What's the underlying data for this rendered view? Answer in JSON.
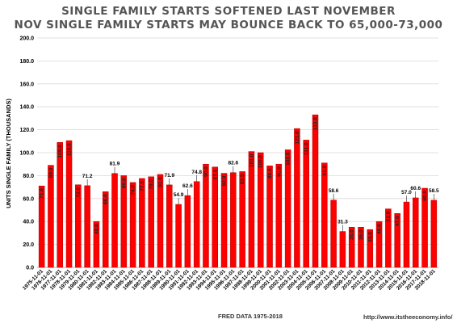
{
  "title": "SINGLE FAMILY STARTS SOFTENED LAST NOVEMBER",
  "subtitle": "NOV SINGLE FAMILY STARTS MAY BOUNCE BACK TO 65,000-73,000",
  "source_note": "FRED  DATA 1975-2018",
  "url_note": "http://www.itstheeconomy.info/",
  "colors": {
    "bar": "#ff0000",
    "bar_stroke": "#b00000",
    "grid": "#d9d9d9",
    "text": "#000000"
  },
  "chart_data": {
    "type": "bar",
    "title": "SINGLE FAMILY STARTS SOFTENED LAST NOVEMBER",
    "subtitle": "NOV SINGLE FAMILY STARTS MAY BOUNCE BACK TO 65,000-73,000",
    "xlabel": "",
    "ylabel": "UNITS SINGLE FAMILY (THOUSANDS)",
    "ylim": [
      0,
      200
    ],
    "yticks": [
      "0.0",
      "20.0",
      "40.0",
      "60.0",
      "80.0",
      "100.0",
      "120.0",
      "140.0",
      "160.0",
      "180.0",
      "200.0"
    ],
    "grid": true,
    "categories": [
      "1975-11-01",
      "1976-11-01",
      "1977-11-01",
      "1978-11-01",
      "1979-11-01",
      "1980-11-01",
      "1981-11-01",
      "1982-11-01",
      "1983-11-01",
      "1984-11-01",
      "1985-11-01",
      "1986-11-01",
      "1987-11-01",
      "1988-11-01",
      "1989-11-01",
      "1990-11-01",
      "1991-11-01",
      "1992-11-01",
      "1993-11-01",
      "1994-11-01",
      "1995-11-01",
      "1996-11-01",
      "1997-11-01",
      "1998-11-01",
      "1999-11-01",
      "2000-11-01",
      "2001-11-01",
      "2002-11-01",
      "2003-11-01",
      "2004-11-01",
      "2005-11-01",
      "2006-11-01",
      "2007-11-01",
      "2008-11-01",
      "2009-11-01",
      "2010-11-01",
      "2011-11-01",
      "2012-11-01",
      "2013-11-01",
      "2014-11-01",
      "2015-11-01",
      "2016-11-01",
      "2017-11-01",
      "2018-11-01"
    ],
    "values": [
      71.0,
      89.0,
      109.0,
      110.5,
      72.0,
      71.2,
      40.0,
      66.0,
      81.9,
      80.0,
      74.0,
      77.5,
      79.0,
      81.0,
      71.9,
      54.9,
      62.6,
      74.8,
      90.0,
      87.5,
      82.0,
      82.6,
      83.5,
      101.0,
      100.0,
      88.5,
      90.0,
      102.5,
      121.0,
      111.0,
      133.0,
      91.0,
      58.6,
      31.3,
      35.0,
      35.0,
      33.0,
      40.0,
      51.0,
      47.0,
      57.0,
      60.6,
      69.0,
      58.5
    ],
    "labels": [
      "71.0",
      "89.0",
      "109.0",
      "110.5",
      "72.0",
      "71.2",
      "40.0",
      "66.0",
      "81.9",
      "80.0",
      "74.0",
      "77.5",
      "79.0",
      "81.0",
      "71.9",
      "54.9",
      "62.6",
      "74.8",
      "90.0",
      "87.5",
      "82.0",
      "82.6",
      "83.5",
      "101.0",
      "100.0",
      "88.5",
      "90.0",
      "102.5",
      "121.0",
      "111.0",
      "133.0",
      "91.0",
      "58.6",
      "31.3",
      "35.0",
      "35.0",
      "33.0",
      "40.0",
      "51.0",
      "47.0",
      "57.0",
      "60.6",
      "69.0",
      "58.5"
    ],
    "label_above": [
      false,
      false,
      false,
      false,
      false,
      true,
      false,
      false,
      true,
      false,
      false,
      false,
      false,
      false,
      true,
      true,
      true,
      true,
      false,
      false,
      false,
      true,
      false,
      false,
      false,
      false,
      false,
      false,
      false,
      false,
      false,
      false,
      true,
      true,
      false,
      false,
      false,
      false,
      false,
      false,
      true,
      true,
      false,
      true
    ]
  }
}
